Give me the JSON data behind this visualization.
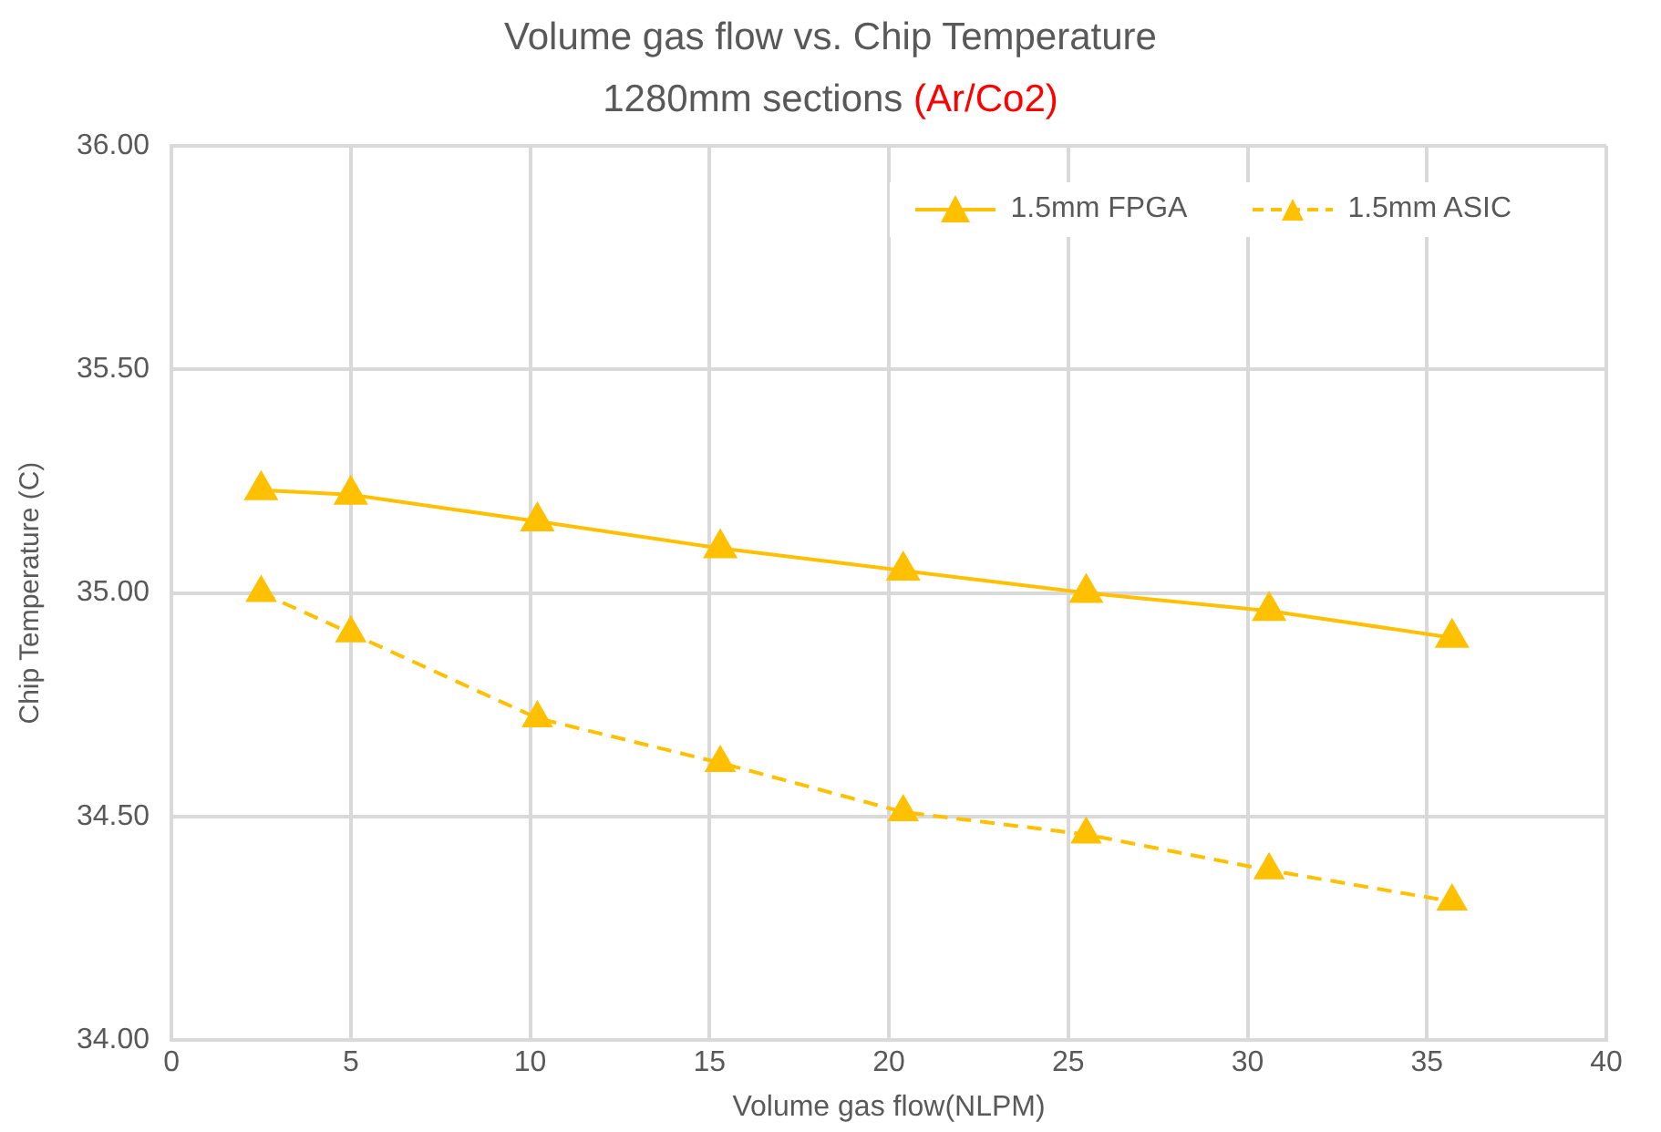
{
  "chart_data": {
    "type": "line",
    "title": "Volume gas flow vs. Chip Temperature",
    "subtitle": "1280mm sections (Ar/Co2)",
    "xlabel": "Volume gas flow(NLPM)",
    "ylabel": "Chip Temperature (C)",
    "x": [
      2.5,
      5,
      10.2,
      15.3,
      20.4,
      25.5,
      30.6,
      35.7
    ],
    "series": [
      {
        "name": "1.5mm FPGA",
        "color": "#ffc000",
        "values": [
          35.23,
          35.22,
          35.16,
          35.1,
          35.05,
          35.0,
          34.96,
          34.9
        ],
        "line_style": "solid"
      },
      {
        "name": "1.5mm ASIC",
        "color": "#ffc000",
        "values": [
          35.0,
          34.91,
          34.72,
          34.62,
          34.51,
          34.46,
          34.38,
          34.31
        ],
        "line_style": "dashed"
      }
    ],
    "xlim": [
      0,
      40
    ],
    "xticks": [
      0,
      5,
      10,
      15,
      20,
      25,
      30,
      35,
      40
    ],
    "ylim": [
      34,
      36
    ],
    "yticks": [
      {
        "value": 34,
        "label": "34.00"
      },
      {
        "value": 34.5,
        "label": "34.50"
      },
      {
        "value": 35,
        "label": "35.00"
      },
      {
        "value": 35.5,
        "label": "35.50"
      },
      {
        "value": 36,
        "label": "36.00"
      }
    ],
    "grid": true,
    "legend": "top right",
    "marker": "triangle"
  }
}
